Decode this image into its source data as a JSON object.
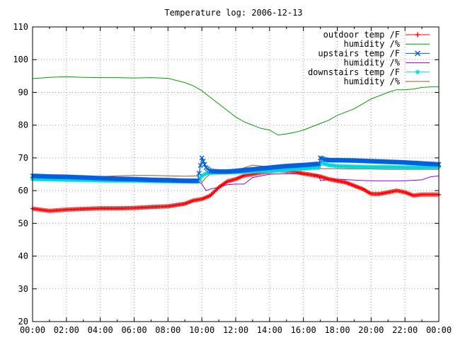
{
  "chart_data": {
    "type": "line",
    "title": "Temperature log: 2006-12-13",
    "xlabel": "",
    "ylabel": "",
    "x_range": [
      "00:00",
      "24:00"
    ],
    "ylim": [
      20,
      110
    ],
    "x_ticks": [
      "00:00",
      "02:00",
      "04:00",
      "06:00",
      "08:00",
      "10:00",
      "12:00",
      "14:00",
      "16:00",
      "18:00",
      "20:00",
      "22:00",
      "00:00"
    ],
    "y_ticks": [
      20,
      30,
      40,
      50,
      60,
      70,
      80,
      90,
      100,
      110
    ],
    "grid": true,
    "legend_position": "top-right",
    "series": [
      {
        "name": "outdoor temp /F",
        "color": "#ff0000",
        "marker": "plus",
        "x": [
          "00:00",
          "01:00",
          "02:00",
          "03:00",
          "04:00",
          "05:00",
          "06:00",
          "07:00",
          "08:00",
          "09:00",
          "09:30",
          "10:00",
          "10:30",
          "11:00",
          "11:30",
          "12:00",
          "12:30",
          "13:00",
          "13:30",
          "14:00",
          "14:30",
          "15:00",
          "15:30",
          "16:00",
          "16:30",
          "17:00",
          "17:30",
          "18:00",
          "18:30",
          "19:00",
          "19:30",
          "20:00",
          "20:30",
          "21:00",
          "21:30",
          "22:00",
          "22:30",
          "23:00",
          "23:30",
          "24:00"
        ],
        "values": [
          54.5,
          53.8,
          54.2,
          54.4,
          54.6,
          54.6,
          54.7,
          55.0,
          55.2,
          56.0,
          57.0,
          57.4,
          58.5,
          61.0,
          62.8,
          63.5,
          64.6,
          65.0,
          65.5,
          65.8,
          66.2,
          66.0,
          65.8,
          65.2,
          64.8,
          64.3,
          63.5,
          63.0,
          62.5,
          61.5,
          60.5,
          59.0,
          59.0,
          59.5,
          60.0,
          59.5,
          58.5,
          58.8,
          58.8,
          58.8
        ]
      },
      {
        "name": "humidity /%",
        "color": "#00a000",
        "marker": "none",
        "x": [
          "00:00",
          "01:00",
          "02:00",
          "03:00",
          "04:00",
          "05:00",
          "06:00",
          "07:00",
          "08:00",
          "09:00",
          "09:30",
          "10:00",
          "10:30",
          "11:00",
          "11:30",
          "12:00",
          "12:30",
          "13:00",
          "13:30",
          "14:00",
          "14:30",
          "15:00",
          "15:30",
          "16:00",
          "16:30",
          "17:00",
          "17:30",
          "18:00",
          "18:30",
          "19:00",
          "19:30",
          "20:00",
          "20:30",
          "21:00",
          "21:30",
          "22:00",
          "22:30",
          "23:00",
          "23:30",
          "24:00"
        ],
        "values": [
          94.2,
          94.6,
          94.8,
          94.6,
          94.5,
          94.5,
          94.4,
          94.5,
          94.3,
          93.0,
          92.0,
          90.5,
          88.5,
          86.5,
          84.5,
          82.5,
          81.0,
          80.0,
          79.0,
          78.5,
          77.0,
          77.3,
          77.8,
          78.5,
          79.5,
          80.5,
          81.5,
          83.0,
          84.0,
          85.0,
          86.5,
          88.0,
          89.0,
          90.0,
          90.8,
          90.8,
          91.0,
          91.5,
          91.7,
          91.7
        ]
      },
      {
        "name": "upstairs temp /F",
        "color": "#0060e0",
        "marker": "cross",
        "x": [
          "00:00",
          "01:00",
          "02:00",
          "03:00",
          "04:00",
          "05:00",
          "06:00",
          "07:00",
          "08:00",
          "09:00",
          "09:45",
          "10:00",
          "10:15",
          "10:30",
          "11:00",
          "11:30",
          "12:00",
          "13:00",
          "14:00",
          "15:00",
          "16:00",
          "16:30",
          "16:55",
          "17:00",
          "17:15",
          "17:30",
          "18:00",
          "19:00",
          "20:00",
          "21:00",
          "22:00",
          "23:00",
          "24:00"
        ],
        "values": [
          64.5,
          64.3,
          64.2,
          64.0,
          63.8,
          63.6,
          63.5,
          63.3,
          63.2,
          63.0,
          63.0,
          70.0,
          67.0,
          66.0,
          65.8,
          65.8,
          66.0,
          66.5,
          67.0,
          67.5,
          67.8,
          68.0,
          68.2,
          70.0,
          69.5,
          69.3,
          69.3,
          69.2,
          69.0,
          68.8,
          68.6,
          68.3,
          68.0
        ]
      },
      {
        "name": "humidity /%",
        "color": "#9400d3",
        "marker": "none",
        "x": [
          "00:00",
          "02:00",
          "04:00",
          "06:00",
          "08:00",
          "09:00",
          "09:45",
          "10:00",
          "10:15",
          "10:30",
          "11:00",
          "11:30",
          "12:00",
          "12:30",
          "13:00",
          "14:00",
          "15:00",
          "16:00",
          "16:55",
          "17:00",
          "17:30",
          "18:00",
          "19:00",
          "20:00",
          "21:00",
          "22:00",
          "23:00",
          "23:30",
          "24:00"
        ],
        "values": [
          63.8,
          63.6,
          63.4,
          63.3,
          63.2,
          63.0,
          63.0,
          62.0,
          60.0,
          60.5,
          61.0,
          61.8,
          62.0,
          62.0,
          64.0,
          65.0,
          65.2,
          65.0,
          64.8,
          63.0,
          63.4,
          63.5,
          63.2,
          63.0,
          63.0,
          63.0,
          63.3,
          64.2,
          64.5
        ]
      },
      {
        "name": "downstairs temp /F",
        "color": "#00d8d8",
        "marker": "star",
        "x": [
          "00:00",
          "01:00",
          "02:00",
          "03:00",
          "04:00",
          "05:00",
          "06:00",
          "07:00",
          "08:00",
          "09:00",
          "09:45",
          "10:00",
          "10:15",
          "10:30",
          "11:00",
          "12:00",
          "13:00",
          "14:00",
          "15:00",
          "16:00",
          "16:55",
          "17:00",
          "17:30",
          "18:00",
          "19:00",
          "20:00",
          "21:00",
          "22:00",
          "23:00",
          "24:00"
        ],
        "values": [
          63.5,
          63.4,
          63.3,
          63.2,
          63.1,
          63.0,
          63.0,
          62.9,
          62.8,
          62.8,
          62.7,
          64.5,
          65.2,
          65.4,
          65.5,
          65.6,
          65.8,
          66.0,
          66.3,
          66.7,
          67.0,
          68.5,
          67.8,
          67.5,
          67.3,
          67.2,
          67.2,
          67.1,
          67.1,
          67.2
        ]
      },
      {
        "name": "humidity /%",
        "color": "#a0522d",
        "marker": "none",
        "x": [
          "00:00",
          "01:00",
          "02:00",
          "03:00",
          "04:00",
          "05:00",
          "06:00",
          "07:00",
          "08:00",
          "09:00",
          "09:45",
          "10:00",
          "10:15",
          "10:30",
          "11:00",
          "12:00",
          "12:30",
          "13:00",
          "13:30",
          "14:00",
          "15:00",
          "16:00",
          "17:00",
          "18:00",
          "19:00",
          "20:00",
          "21:00",
          "22:00",
          "23:00",
          "24:00"
        ],
        "values": [
          63.8,
          64.0,
          64.0,
          64.2,
          64.3,
          64.5,
          64.6,
          64.6,
          64.5,
          64.4,
          64.5,
          62.5,
          64.0,
          65.0,
          65.5,
          66.0,
          67.0,
          67.8,
          67.5,
          67.3,
          67.0,
          66.8,
          66.7,
          66.7,
          66.6,
          66.6,
          66.5,
          66.5,
          66.5,
          66.5
        ]
      }
    ]
  }
}
